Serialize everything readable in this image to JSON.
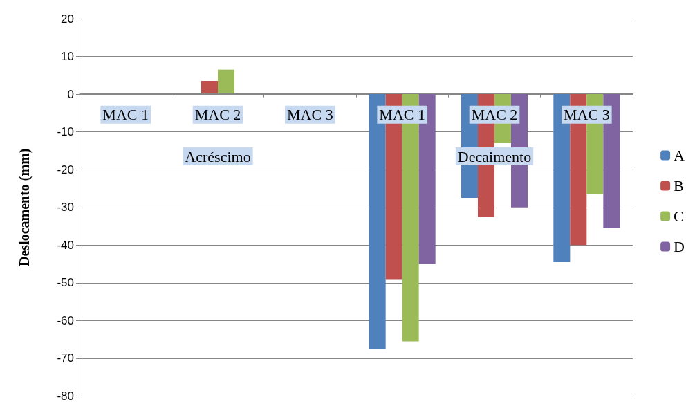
{
  "chart_data": {
    "type": "bar",
    "ylabel": "Deslocamento (mm)",
    "categories": [
      "MAC 1",
      "MAC 2",
      "MAC 3",
      "MAC 1",
      "MAC 2",
      "MAC 3"
    ],
    "annotations": [
      "Acréscimo",
      "Decaimento"
    ],
    "series": [
      {
        "name": "A",
        "color": "#4f81bd",
        "values": [
          null,
          null,
          null,
          -67.5,
          -27.5,
          -44.5
        ]
      },
      {
        "name": "B",
        "color": "#c0504d",
        "values": [
          null,
          3.5,
          null,
          -49,
          -32.5,
          -40
        ]
      },
      {
        "name": "C",
        "color": "#9bbb59",
        "values": [
          null,
          6.5,
          null,
          -65.5,
          -13,
          -26.5
        ]
      },
      {
        "name": "D",
        "color": "#8064a2",
        "values": [
          null,
          null,
          null,
          -45,
          -30,
          -35.5
        ]
      }
    ],
    "ylim": [
      -80,
      20
    ],
    "yticks": [
      -80,
      -70,
      -60,
      -50,
      -40,
      -30,
      -20,
      -10,
      0,
      10,
      20
    ],
    "grid": "y",
    "legend": "right"
  }
}
